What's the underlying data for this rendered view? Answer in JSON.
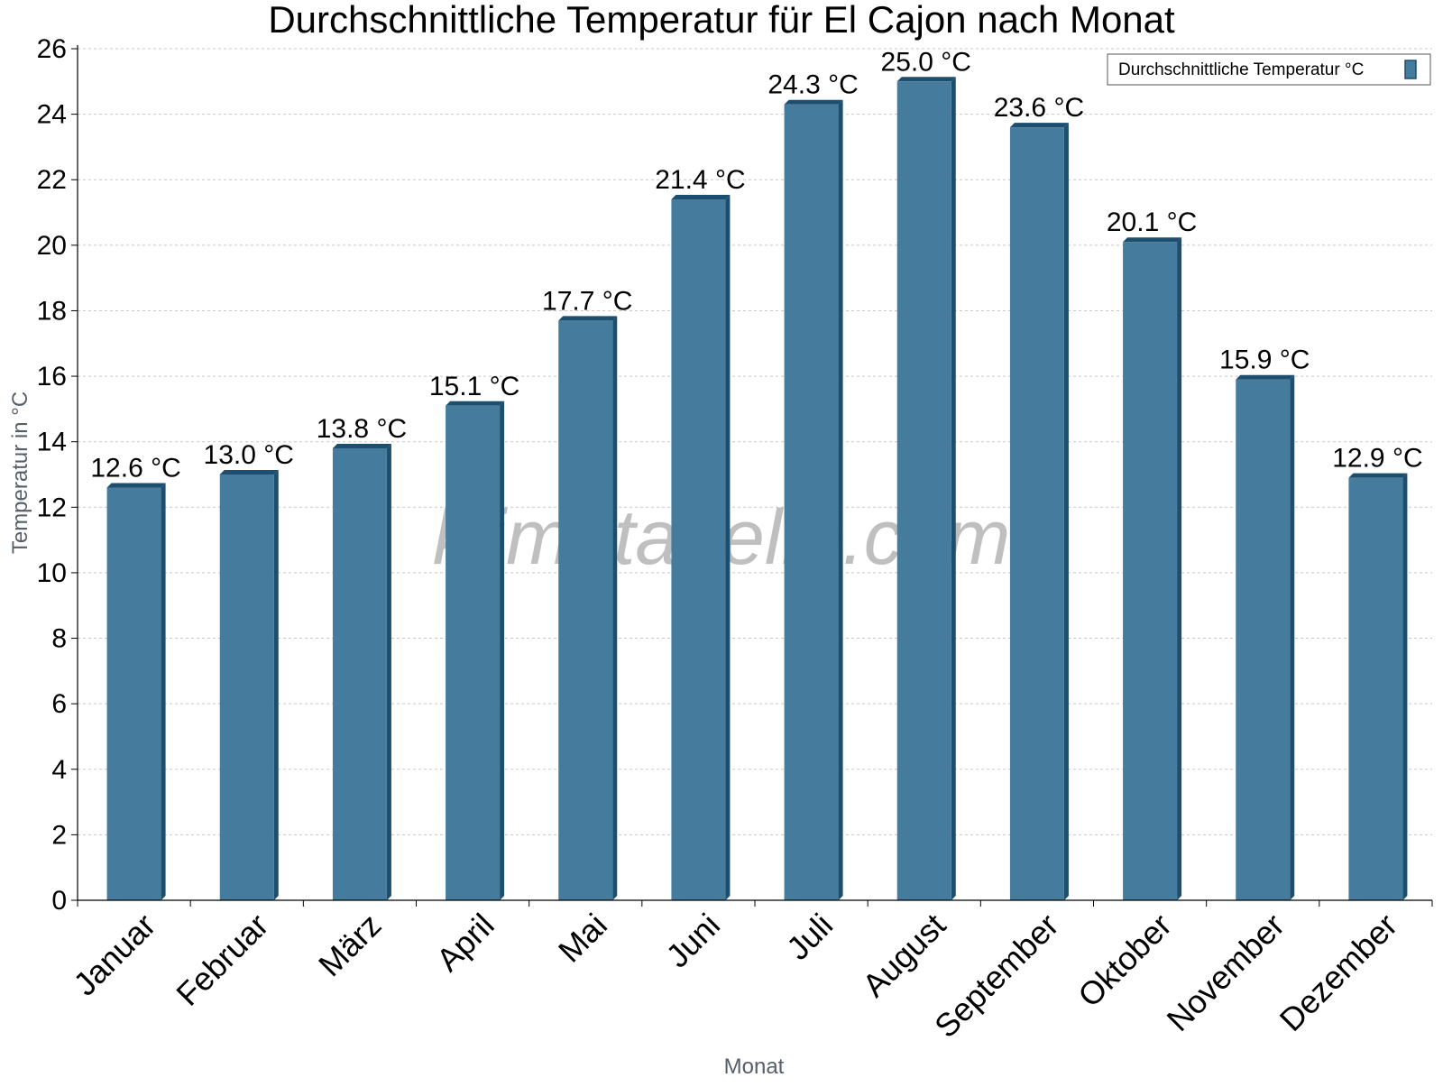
{
  "colors": {
    "bar": "#457b9d",
    "bar_side": "#1d4e6e",
    "bar_top": "#1d4e6e",
    "axis": "#000000",
    "grid": "#c8c8c8",
    "axis_label": "#555f6b",
    "watermark": "#b4b4b4"
  },
  "watermark": "klimatabelle.com",
  "chart_data": {
    "type": "bar",
    "title": "Durchschnittliche Temperatur für El Cajon nach Monat",
    "xlabel": "Monat",
    "ylabel": "Temperatur in °C",
    "categories": [
      "Januar",
      "Februar",
      "März",
      "April",
      "Mai",
      "Juni",
      "Juli",
      "August",
      "September",
      "Oktober",
      "November",
      "Dezember"
    ],
    "series": [
      {
        "name": "Durchschnittliche Temperatur °C",
        "values": [
          12.6,
          13.0,
          13.8,
          15.1,
          17.7,
          21.4,
          24.3,
          25.0,
          23.6,
          20.1,
          15.9,
          12.9
        ],
        "labels": [
          "12.6 °C",
          "13.0 °C",
          "13.8 °C",
          "15.1 °C",
          "17.7 °C",
          "21.4 °C",
          "24.3 °C",
          "25.0 °C",
          "23.6 °C",
          "20.1 °C",
          "15.9 °C",
          "12.9 °C"
        ]
      }
    ],
    "ylim": [
      0,
      26
    ],
    "yticks": [
      0,
      2,
      4,
      6,
      8,
      10,
      12,
      14,
      16,
      18,
      20,
      22,
      24,
      26
    ],
    "grid": true,
    "legend_position": "top-right"
  }
}
